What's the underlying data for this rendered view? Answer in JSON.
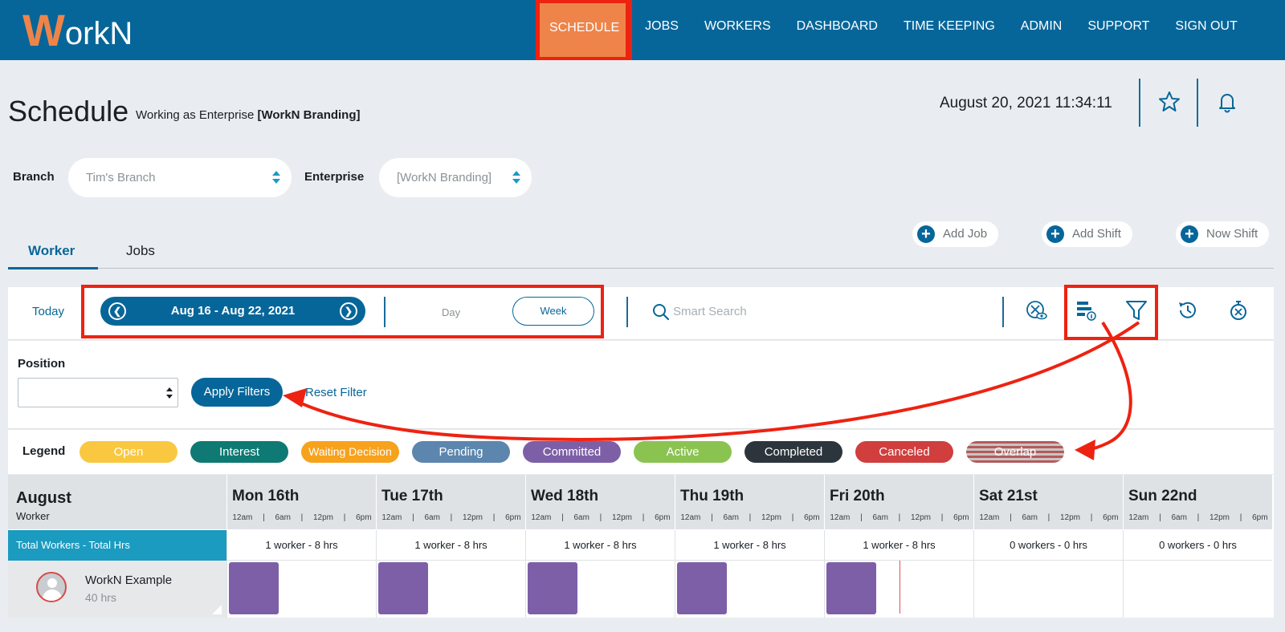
{
  "app": {
    "logo_w": "W",
    "logo_rest": "orkN"
  },
  "nav": {
    "items": [
      {
        "label": "SCHEDULE"
      },
      {
        "label": "JOBS"
      },
      {
        "label": "WORKERS"
      },
      {
        "label": "DASHBOARD"
      },
      {
        "label": "TIME KEEPING"
      },
      {
        "label": "ADMIN"
      },
      {
        "label": "SUPPORT"
      },
      {
        "label": "SIGN OUT"
      }
    ]
  },
  "header": {
    "title": "Schedule",
    "working_prefix": "Working as Enterprise ",
    "working_enterprise": "[WorkN Branding]",
    "datetime": "August 20, 2021 11:34:11"
  },
  "selectors": {
    "branch_label": "Branch",
    "branch_value": "Tim's Branch",
    "enterprise_label": "Enterprise",
    "enterprise_value": "[WorkN Branding]"
  },
  "tabs": {
    "worker": "Worker",
    "jobs": "Jobs"
  },
  "actions": {
    "add_job": "Add Job",
    "add_shift": "Add Shift",
    "now_shift": "Now Shift"
  },
  "toolbar": {
    "today": "Today",
    "range": "Aug 16 - Aug 22, 2021",
    "day": "Day",
    "week": "Week",
    "search_placeholder": "Smart Search"
  },
  "filter": {
    "position_label": "Position",
    "apply": "Apply Filters",
    "reset": "Reset Filter"
  },
  "legend": {
    "title": "Legend",
    "items": [
      {
        "label": "Open",
        "color": "#f9c840"
      },
      {
        "label": "Interest",
        "color": "#0e7a73"
      },
      {
        "label": "Waiting Decision",
        "color": "#f7a21c"
      },
      {
        "label": "Pending",
        "color": "#5c86ae"
      },
      {
        "label": "Committed",
        "color": "#7d5fa7"
      },
      {
        "label": "Active",
        "color": "#8bc351"
      },
      {
        "label": "Completed",
        "color": "#2d353c"
      },
      {
        "label": "Canceled",
        "color": "#d03e3e"
      },
      {
        "label": "Overlap",
        "color": "#b55a5a"
      }
    ]
  },
  "grid": {
    "month": "August",
    "worker_col": "Worker",
    "total_label": "Total Workers - Total Hrs",
    "ticks": [
      "12am",
      "|",
      "6am",
      "|",
      "12pm",
      "|",
      "6pm"
    ],
    "days": [
      {
        "name": "Mon 16th",
        "total": "1 worker - 8 hrs",
        "shift": true
      },
      {
        "name": "Tue 17th",
        "total": "1 worker - 8 hrs",
        "shift": true
      },
      {
        "name": "Wed 18th",
        "total": "1 worker - 8 hrs",
        "shift": true
      },
      {
        "name": "Thu 19th",
        "total": "1 worker - 8 hrs",
        "shift": true
      },
      {
        "name": "Fri 20th",
        "total": "1 worker - 8 hrs",
        "shift": true
      },
      {
        "name": "Sat 21st",
        "total": "0 workers - 0 hrs",
        "shift": false
      },
      {
        "name": "Sun 22nd",
        "total": "0 workers - 0 hrs",
        "shift": false
      }
    ],
    "worker": {
      "name": "WorkN Example",
      "hours": "40 hrs"
    }
  },
  "colors": {
    "brand": "#076699",
    "accent": "#ee8449",
    "annotation": "#ee2211"
  }
}
